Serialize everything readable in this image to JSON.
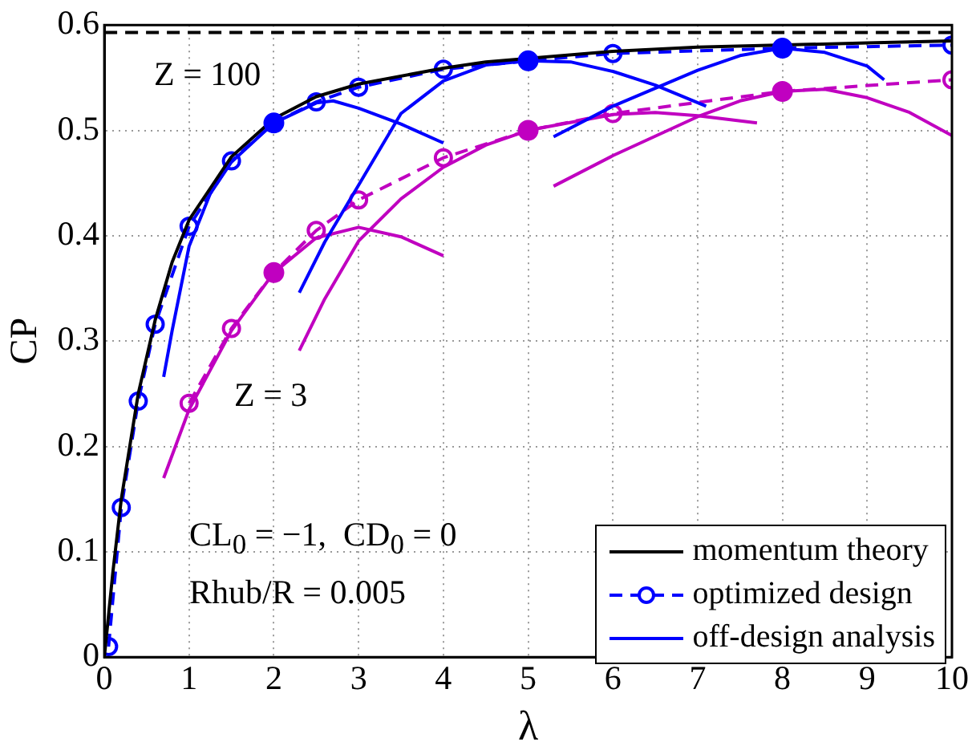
{
  "chart_data": {
    "type": "line",
    "xlabel": "λ",
    "ylabel": "CP",
    "xlim": [
      0,
      10
    ],
    "ylim": [
      0,
      0.6
    ],
    "xticks": [
      0,
      1,
      2,
      3,
      4,
      5,
      6,
      7,
      8,
      9,
      10
    ],
    "yticks": [
      0,
      0.1,
      0.2,
      0.3,
      0.4,
      0.5,
      0.6
    ],
    "grid": true,
    "legend": "bottom right",
    "series": [
      {
        "name": "momentum theory",
        "color": "#000000",
        "line_style": "solid",
        "marker": "none",
        "x": [
          0,
          0.1,
          0.2,
          0.4,
          0.6,
          0.8,
          1,
          1.5,
          2,
          2.5,
          3,
          4,
          4.5,
          6,
          7,
          9,
          10
        ],
        "values": [
          0,
          0.08,
          0.15,
          0.25,
          0.32,
          0.375,
          0.415,
          0.475,
          0.511,
          0.532,
          0.544,
          0.559,
          0.565,
          0.575,
          0.579,
          0.583,
          0.585
        ]
      },
      {
        "name": "optimized design",
        "color": "#0000ff",
        "line_style": "dashed",
        "marker": "circle",
        "x": [
          0.05,
          0.2,
          0.4,
          0.6,
          1,
          1.5,
          2,
          2.5,
          3,
          4,
          5,
          6,
          8,
          10
        ],
        "values": [
          0.01,
          0.142,
          0.243,
          0.316,
          0.409,
          0.471,
          0.507,
          0.527,
          0.541,
          0.558,
          0.566,
          0.573,
          0.578,
          0.581
        ]
      },
      {
        "name": "off-design analysis",
        "color": "#0000ff",
        "line_style": "solid",
        "marker": "none",
        "x": [
          0.7,
          0.8,
          1,
          1.25,
          1.5,
          2,
          2.5,
          2.7,
          3,
          3.5,
          4
        ],
        "values": [
          0.266,
          0.31,
          0.39,
          0.44,
          0.47,
          0.507,
          0.526,
          0.528,
          0.521,
          0.506,
          0.488
        ]
      },
      {
        "type": "line",
        "color": "#0000ff",
        "line_style": "solid",
        "marker": "none",
        "x": [
          2.3,
          2.6,
          3,
          3.5,
          4,
          4.5,
          5,
          5.5,
          6,
          6.5,
          7.1
        ],
        "values": [
          0.346,
          0.394,
          0.448,
          0.516,
          0.547,
          0.562,
          0.566,
          0.565,
          0.556,
          0.543,
          0.523
        ]
      },
      {
        "type": "line",
        "color": "#0000ff",
        "line_style": "solid",
        "marker": "none",
        "x": [
          5.3,
          6,
          7,
          7.5,
          8,
          8.5,
          9,
          9.2
        ],
        "values": [
          0.494,
          0.523,
          0.557,
          0.571,
          0.578,
          0.574,
          0.561,
          0.548
        ]
      },
      {
        "type": "scatter",
        "color": "#0000ff",
        "marker": "circle",
        "x": [
          2,
          5,
          8
        ],
        "values": [
          0.507,
          0.566,
          0.578
        ]
      },
      {
        "type": "line",
        "color": "#c000c0",
        "line_style": "dashed",
        "marker": "circle",
        "x": [
          1,
          1.5,
          2,
          2.5,
          3,
          4,
          5,
          6,
          8,
          10
        ],
        "values": [
          0.241,
          0.312,
          0.365,
          0.405,
          0.434,
          0.474,
          0.5,
          0.516,
          0.537,
          0.548
        ]
      },
      {
        "type": "line",
        "color": "#c000c0",
        "line_style": "solid",
        "marker": "none",
        "x": [
          0.7,
          1,
          1.5,
          2,
          2.5,
          3,
          3.5,
          4
        ],
        "values": [
          0.17,
          0.235,
          0.31,
          0.365,
          0.398,
          0.408,
          0.399,
          0.381
        ]
      },
      {
        "type": "line",
        "color": "#c000c0",
        "line_style": "solid",
        "marker": "none",
        "x": [
          2.3,
          2.6,
          3,
          3.5,
          4,
          4.5,
          5,
          6,
          6.5,
          7,
          7.7
        ],
        "values": [
          0.291,
          0.34,
          0.395,
          0.435,
          0.465,
          0.486,
          0.5,
          0.515,
          0.517,
          0.514,
          0.507
        ]
      },
      {
        "type": "line",
        "color": "#c000c0",
        "line_style": "solid",
        "marker": "none",
        "x": [
          5.3,
          6,
          7,
          7.5,
          8,
          8.5,
          9,
          9.5,
          10
        ],
        "values": [
          0.447,
          0.476,
          0.513,
          0.528,
          0.537,
          0.539,
          0.531,
          0.517,
          0.495
        ]
      },
      {
        "type": "scatter",
        "color": "#c000c0",
        "marker": "circle",
        "x": [
          2,
          5,
          8
        ],
        "values": [
          0.365,
          0.5,
          0.537
        ]
      }
    ],
    "ref_lines": [
      {
        "axis": "y",
        "value": 0.593,
        "color": "#000000",
        "line_style": "dashed"
      }
    ],
    "annotations": [
      "Z = 100",
      "Z = 3",
      "CL$_{0}$ = −1,  CD$_{0}$ = 0",
      "Rhub/R = 0.005"
    ]
  }
}
